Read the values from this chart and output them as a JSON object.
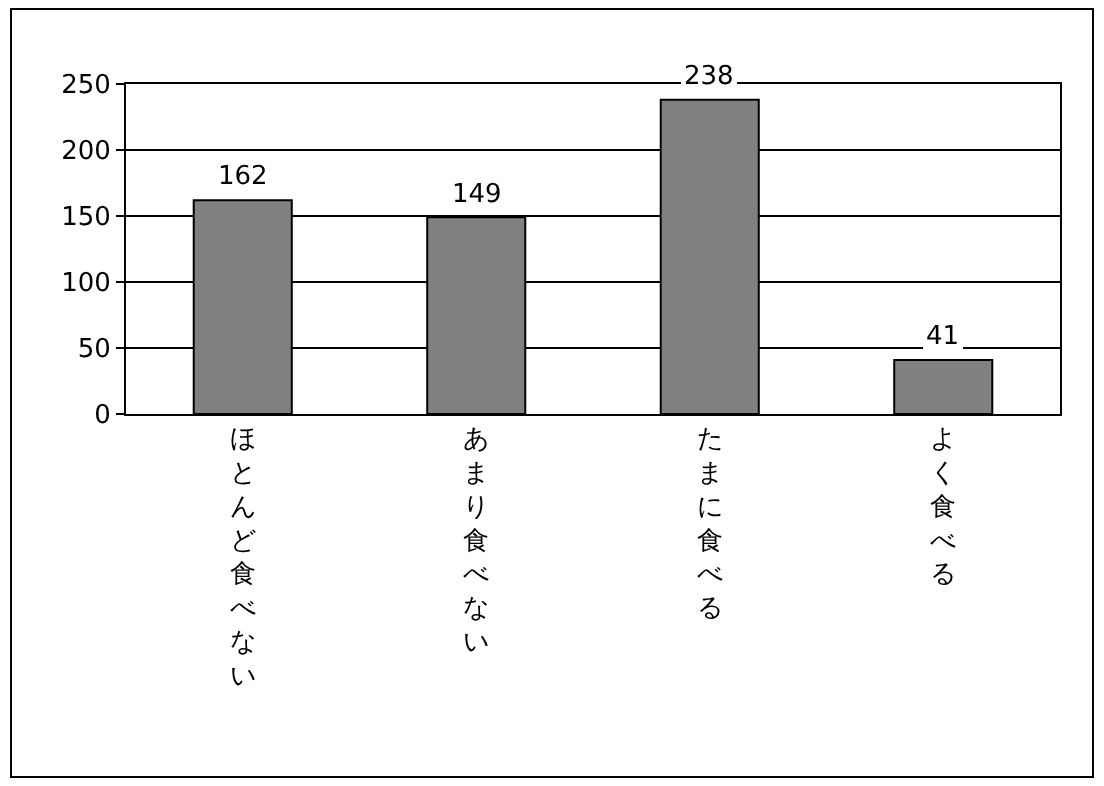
{
  "chart_data": {
    "type": "bar",
    "categories": [
      "ほとんど食べない",
      "あまり食べない",
      "たまに食べる",
      "よく食べる"
    ],
    "values": [
      162,
      149,
      238,
      41
    ],
    "color": "#808080",
    "ylim": [
      0,
      250
    ],
    "yticks": [
      0,
      50,
      100,
      150,
      200,
      250
    ],
    "grid": "y",
    "data_labels": true
  }
}
